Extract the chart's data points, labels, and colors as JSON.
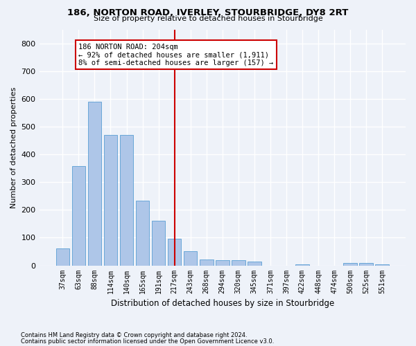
{
  "title1": "186, NORTON ROAD, IVERLEY, STOURBRIDGE, DY8 2RT",
  "title2": "Size of property relative to detached houses in Stourbridge",
  "xlabel": "Distribution of detached houses by size in Stourbridge",
  "ylabel": "Number of detached properties",
  "categories": [
    "37sqm",
    "63sqm",
    "88sqm",
    "114sqm",
    "140sqm",
    "165sqm",
    "191sqm",
    "217sqm",
    "243sqm",
    "268sqm",
    "294sqm",
    "320sqm",
    "345sqm",
    "371sqm",
    "397sqm",
    "422sqm",
    "448sqm",
    "474sqm",
    "500sqm",
    "525sqm",
    "551sqm"
  ],
  "values": [
    60,
    358,
    590,
    470,
    470,
    232,
    160,
    95,
    50,
    22,
    20,
    18,
    13,
    0,
    0,
    5,
    0,
    0,
    8,
    8,
    5
  ],
  "bar_color": "#aec6e8",
  "bar_edge_color": "#5a9fd4",
  "background_color": "#eef2f9",
  "grid_color": "#ffffff",
  "annotation_label": "186 NORTON ROAD: 204sqm",
  "annotation_line1": "← 92% of detached houses are smaller (1,911)",
  "annotation_line2": "8% of semi-detached houses are larger (157) →",
  "annotation_box_color": "#ffffff",
  "annotation_box_edge_color": "#cc0000",
  "vline_color": "#cc0000",
  "footnote1": "Contains HM Land Registry data © Crown copyright and database right 2024.",
  "footnote2": "Contains public sector information licensed under the Open Government Licence v3.0.",
  "ylim": [
    0,
    850
  ],
  "yticks": [
    0,
    100,
    200,
    300,
    400,
    500,
    600,
    700,
    800
  ]
}
